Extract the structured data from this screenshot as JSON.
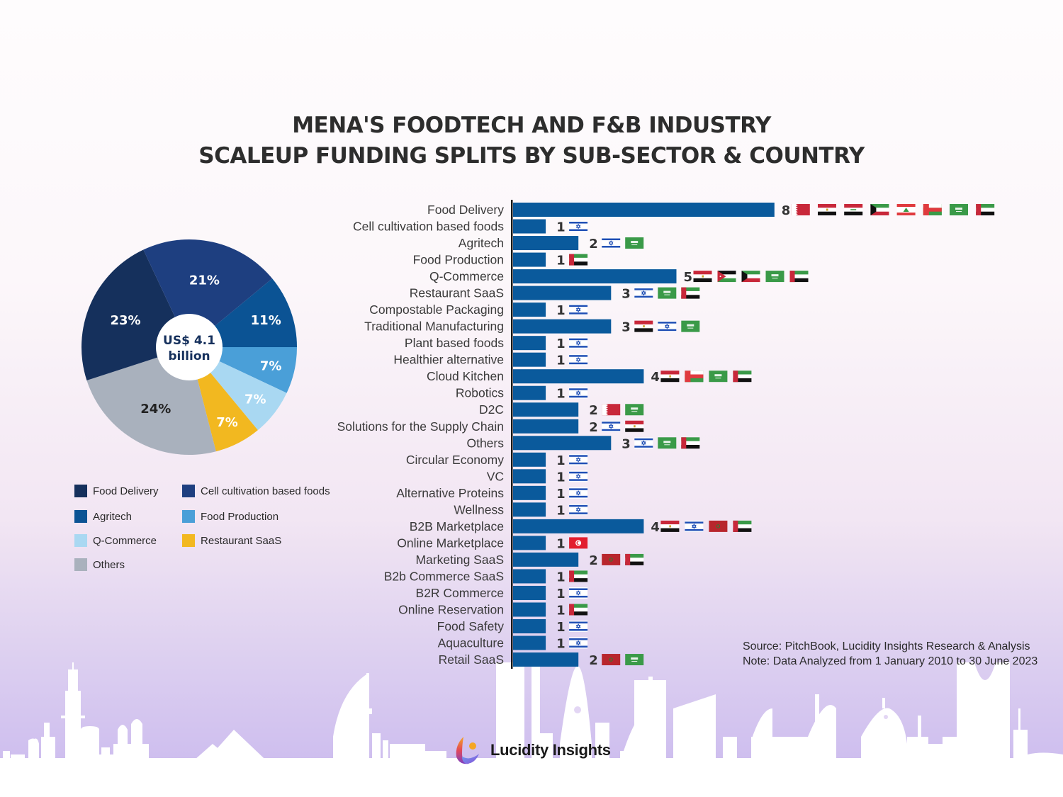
{
  "title": {
    "line1": "MENA'S FOODTECH AND F&B INDUSTRY",
    "line2": "SCALEUP FUNDING SPLITS BY SUB-SECTOR & COUNTRY"
  },
  "colors": {
    "bar": "#0a5a9c",
    "axis": "#1a1a1a",
    "label_text": "#3a3a3a",
    "count_text": "#333333"
  },
  "chart_data": [
    {
      "type": "pie",
      "title": "",
      "center_label": [
        "US$ 4.1",
        "billion"
      ],
      "slices": [
        {
          "label": "Agritech",
          "value": 11,
          "display": "11%",
          "color": "#0b5394"
        },
        {
          "label": "Food Production",
          "value": 7,
          "display": "7%",
          "color": "#4a9fd8"
        },
        {
          "label": "Q-Commerce",
          "value": 7,
          "display": "7%",
          "color": "#a9d8f2"
        },
        {
          "label": "Restaurant SaaS",
          "value": 7,
          "display": "7%",
          "color": "#f2b820"
        },
        {
          "label": "Others",
          "value": 24,
          "display": "24%",
          "color": "#a9b1bd"
        },
        {
          "label": "Food Delivery",
          "value": 23,
          "display": "23%",
          "color": "#15305c"
        },
        {
          "label": "Cell cultivation based foods",
          "value": 21,
          "display": "21%",
          "color": "#1e3f80"
        }
      ],
      "legend": [
        {
          "label": "Food Delivery",
          "color": "#15305c"
        },
        {
          "label": "Cell cultivation based foods",
          "color": "#1e3f80"
        },
        {
          "label": "Agritech",
          "color": "#0b5394"
        },
        {
          "label": "Food Production",
          "color": "#4a9fd8"
        },
        {
          "label": "Q-Commerce",
          "color": "#a9d8f2"
        },
        {
          "label": "Restaurant SaaS",
          "color": "#f2b820"
        },
        {
          "label": "Others",
          "color": "#a9b1bd"
        }
      ],
      "legend_position": "bottom"
    },
    {
      "type": "bar",
      "orientation": "horizontal",
      "title": "",
      "xlabel": "",
      "ylabel": "",
      "xlim": [
        0,
        8
      ],
      "grid": false,
      "categories": [
        "Food Delivery",
        "Cell cultivation based foods",
        "Agritech",
        "Food Production",
        "Q-Commerce",
        "Restaurant SaaS",
        "Compostable Packaging",
        "Traditional Manufacturing",
        "Plant based foods",
        "Healthier alternative",
        "Cloud Kitchen",
        "Robotics",
        "D2C",
        "Solutions for the Supply Chain",
        "Others",
        "Circular Economy",
        "VC",
        "Alternative Proteins",
        "Wellness",
        "B2B Marketplace",
        "Online Marketplace",
        "Marketing SaaS",
        "B2b Commerce SaaS",
        "B2R Commerce",
        "Online Reservation",
        "Food Safety",
        "Aquaculture",
        "Retail SaaS"
      ],
      "values": [
        8,
        1,
        2,
        1,
        5,
        3,
        1,
        3,
        1,
        1,
        4,
        1,
        2,
        2,
        3,
        1,
        1,
        1,
        1,
        4,
        1,
        2,
        1,
        1,
        1,
        1,
        1,
        2
      ],
      "countries": [
        [
          "bahrain",
          "egypt",
          "iraq",
          "kuwait",
          "lebanon",
          "oman",
          "saudi-arabia",
          "uae"
        ],
        [
          "israel"
        ],
        [
          "israel",
          "saudi-arabia"
        ],
        [
          "uae"
        ],
        [
          "egypt",
          "jordan",
          "kuwait",
          "saudi-arabia",
          "uae"
        ],
        [
          "israel",
          "saudi-arabia",
          "uae"
        ],
        [
          "israel"
        ],
        [
          "egypt",
          "israel",
          "saudi-arabia"
        ],
        [
          "israel"
        ],
        [
          "israel"
        ],
        [
          "egypt",
          "oman",
          "saudi-arabia",
          "uae"
        ],
        [
          "israel"
        ],
        [
          "bahrain",
          "saudi-arabia"
        ],
        [
          "israel",
          "egypt"
        ],
        [
          "israel",
          "saudi-arabia",
          "uae"
        ],
        [
          "israel"
        ],
        [
          "israel"
        ],
        [
          "israel"
        ],
        [
          "israel"
        ],
        [
          "egypt",
          "israel",
          "morocco",
          "uae"
        ],
        [
          "tunisia"
        ],
        [
          "morocco",
          "uae"
        ],
        [
          "uae"
        ],
        [
          "israel"
        ],
        [
          "uae"
        ],
        [
          "israel"
        ],
        [
          "israel"
        ],
        [
          "morocco",
          "saudi-arabia"
        ]
      ]
    }
  ],
  "notes": {
    "source": "Source: PitchBook, Lucidity Insights Research & Analysis",
    "note": "Note: Data Analyzed from 1 January 2010 to 30 June 2023"
  },
  "brand": {
    "name": "Lucidity Insights"
  }
}
